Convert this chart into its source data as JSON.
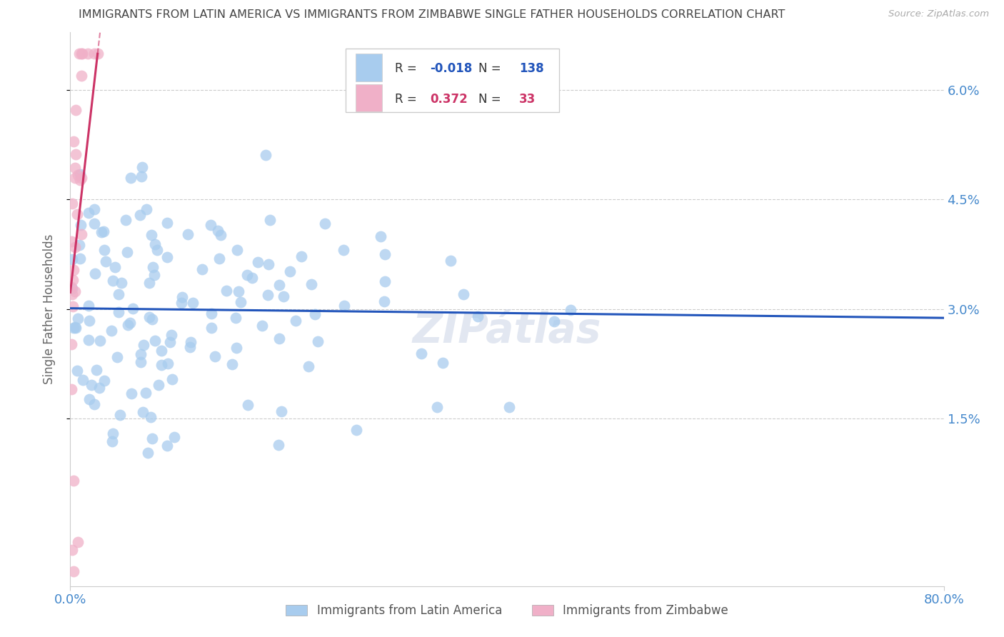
{
  "title": "IMMIGRANTS FROM LATIN AMERICA VS IMMIGRANTS FROM ZIMBABWE SINGLE FATHER HOUSEHOLDS CORRELATION CHART",
  "source": "Source: ZipAtlas.com",
  "ylabel": "Single Father Households",
  "xlim": [
    0.0,
    0.8
  ],
  "ylim": [
    -0.008,
    0.068
  ],
  "yticks": [
    0.015,
    0.03,
    0.045,
    0.06
  ],
  "ytick_labels": [
    "1.5%",
    "3.0%",
    "4.5%",
    "6.0%"
  ],
  "xticks": [
    0.0,
    0.8
  ],
  "xtick_labels": [
    "0.0%",
    "80.0%"
  ],
  "legend_label1": "Immigrants from Latin America",
  "legend_label2": "Immigrants from Zimbabwe",
  "R1": -0.018,
  "N1": 138,
  "R2": 0.372,
  "N2": 33,
  "color1": "#a8ccee",
  "color2": "#f0b0c8",
  "regression_color1": "#2255bb",
  "regression_color2": "#cc3366",
  "watermark": "ZIPátlas",
  "background_color": "#ffffff",
  "grid_color": "#cccccc",
  "title_color": "#444444",
  "axis_label_color": "#666666",
  "tick_color": "#4488cc",
  "right_tick_color": "#4488cc"
}
